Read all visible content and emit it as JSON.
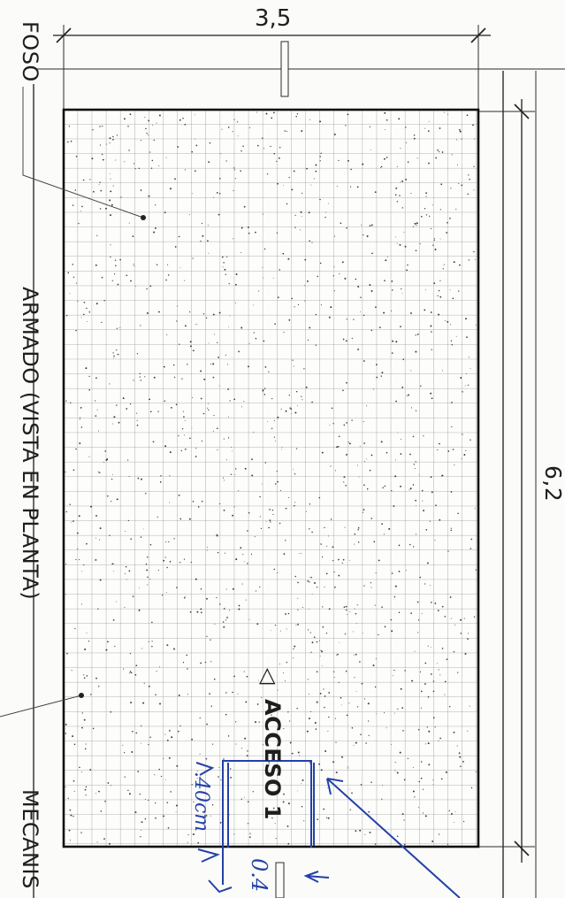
{
  "labels": {
    "foso": "FOSO",
    "armado": "ARMADO (VISTA EN PLANTA)",
    "mecanis": "MECANIS",
    "acceso": "ACCESO 1",
    "acceso_marker": "◁"
  },
  "dimensions": {
    "width": "3,5",
    "length": "6,2"
  },
  "handwritten": {
    "opening_width": ".40cm",
    "offset": "0.4"
  },
  "colors": {
    "ink": "#1e1e1e",
    "pen": "#2341a8",
    "paper": "#fbfbf9",
    "grid": "#9a9a9a"
  }
}
